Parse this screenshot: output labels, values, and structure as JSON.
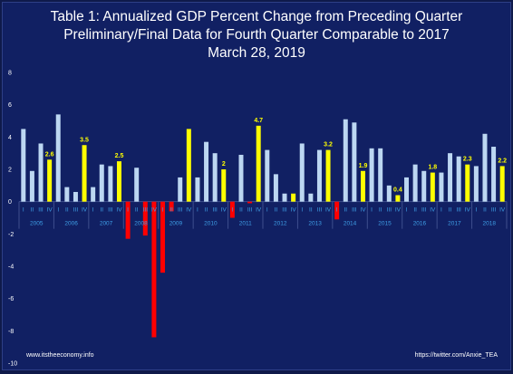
{
  "page": {
    "title_line1": "Table 1: Annualized GDP Percent Change from Preceding Quarter",
    "title_line2": "Preliminary/Final Data for Fourth Quarter Comparable to 2017",
    "title_line3": "March 28, 2019",
    "footer_left": "www.itstheeconomy.info",
    "footer_right": "https://twitter.com/Anxie_TEA"
  },
  "chart_data": {
    "type": "bar",
    "title": "Table 1: Annualized GDP Percent Change from Preceding Quarter",
    "subtitle": "Preliminary/Final Data for Fourth Quarter Comparable to 2017",
    "date": "March 28, 2019",
    "quarter_labels": [
      "I",
      "II",
      "III",
      "IV"
    ],
    "years": [
      "2005",
      "2006",
      "2007",
      "2008",
      "2009",
      "2010",
      "2011",
      "2012",
      "2013",
      "2014",
      "2015",
      "2016",
      "2017",
      "2018"
    ],
    "values": [
      4.5,
      1.9,
      3.6,
      2.6,
      5.4,
      0.9,
      0.6,
      3.5,
      0.9,
      2.3,
      2.2,
      2.5,
      -2.3,
      2.1,
      -2.1,
      -8.4,
      -4.4,
      -0.6,
      1.5,
      4.5,
      1.5,
      3.7,
      3.0,
      2.0,
      -1.0,
      2.9,
      -0.1,
      4.7,
      3.2,
      1.7,
      0.5,
      0.5,
      3.6,
      0.5,
      3.2,
      3.2,
      -1.1,
      5.1,
      4.9,
      1.9,
      3.3,
      3.3,
      1.0,
      0.4,
      1.5,
      2.3,
      1.9,
      1.8,
      1.8,
      3.0,
      2.8,
      2.3,
      2.2,
      4.2,
      3.4,
      2.2
    ],
    "q4_labels": [
      "2.6",
      "3.5",
      "2.5",
      "",
      "",
      "2",
      "4.7",
      "",
      "3.2",
      "1.9",
      "0.4",
      "1.8",
      "2.3",
      "2.2"
    ],
    "y_ticks": [
      8,
      6,
      4,
      2,
      0,
      -2,
      -4,
      -6,
      -8,
      -10
    ],
    "ylim": [
      -10,
      8
    ],
    "colors": {
      "positive": "#bcd7f2",
      "negative": "#ff0000",
      "q4": "#ffff00",
      "text": "#ffffff",
      "axis_labels": "#3fa0e8",
      "grid": "#3e4e8e",
      "background": "#112063"
    }
  }
}
